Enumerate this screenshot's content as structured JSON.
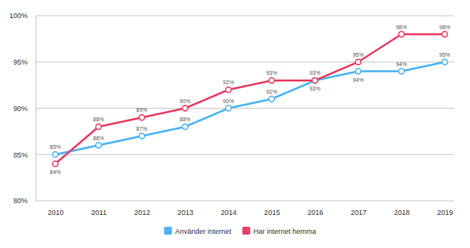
{
  "chart_data": {
    "type": "line",
    "categories": [
      "2010",
      "2011",
      "2012",
      "2013",
      "2014",
      "2015",
      "2016",
      "2017",
      "2018",
      "2019"
    ],
    "series": [
      {
        "name": "Använder internet",
        "color": "#4bb3f2",
        "marker": "circle",
        "values": [
          85,
          86,
          87,
          88,
          90,
          91,
          93,
          94,
          94,
          95
        ],
        "value_labels": [
          "85%",
          "86%",
          "87%",
          "88%",
          "90%",
          "91%",
          "93%",
          "94%",
          "94%",
          "95%"
        ]
      },
      {
        "name": "Har internet hemma",
        "color": "#ea3d63",
        "marker": "circle",
        "values": [
          84,
          88,
          89,
          90,
          92,
          93,
          93,
          95,
          98,
          98
        ],
        "value_labels": [
          "84%",
          "88%",
          "89%",
          "90%",
          "92%",
          "93%",
          "93%",
          "95%",
          "98%",
          "98%"
        ]
      }
    ],
    "ylim": [
      80,
      100
    ],
    "yticks": [
      {
        "value": 80,
        "label": "80%"
      },
      {
        "value": 85,
        "label": "85%"
      },
      {
        "value": 90,
        "label": "90%"
      },
      {
        "value": 95,
        "label": "95%"
      },
      {
        "value": 100,
        "label": "100%"
      }
    ],
    "grid": true,
    "legend": "bottom",
    "data_labels": true
  }
}
